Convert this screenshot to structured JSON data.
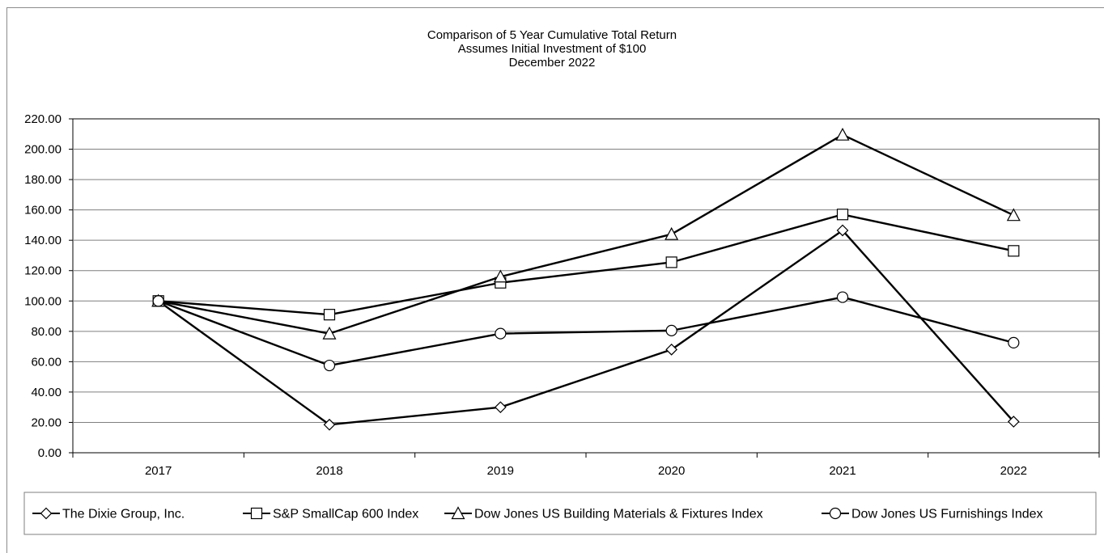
{
  "chart_data": {
    "type": "line",
    "title": "Comparison of 5 Year Cumulative Total Return",
    "subtitle_lines": [
      "Assumes Initial Investment of $100",
      "December 2022"
    ],
    "xlabel": "",
    "ylabel": "",
    "categories": [
      "2017",
      "2018",
      "2019",
      "2020",
      "2021",
      "2022"
    ],
    "ylim": [
      0,
      220
    ],
    "yticks": [
      "0.00",
      "20.00",
      "40.00",
      "60.00",
      "80.00",
      "100.00",
      "120.00",
      "140.00",
      "160.00",
      "180.00",
      "200.00",
      "220.00"
    ],
    "grid": true,
    "legend_position": "bottom",
    "line_color": "#000000",
    "series": [
      {
        "name": "The Dixie Group, Inc.",
        "marker": "diamond",
        "values": [
          100,
          18.5,
          30,
          68,
          146.5,
          20.5
        ]
      },
      {
        "name": "S&P SmallCap 600 Index",
        "marker": "square",
        "values": [
          100,
          91,
          112,
          125.5,
          157,
          133
        ]
      },
      {
        "name": "Dow Jones US Building Materials & Fixtures Index",
        "marker": "triangle",
        "values": [
          100,
          78.5,
          116,
          144,
          209.5,
          156.5
        ]
      },
      {
        "name": "Dow Jones US Furnishings Index",
        "marker": "circle",
        "values": [
          100,
          57.5,
          78.5,
          80.5,
          102.5,
          72.5
        ]
      }
    ]
  }
}
